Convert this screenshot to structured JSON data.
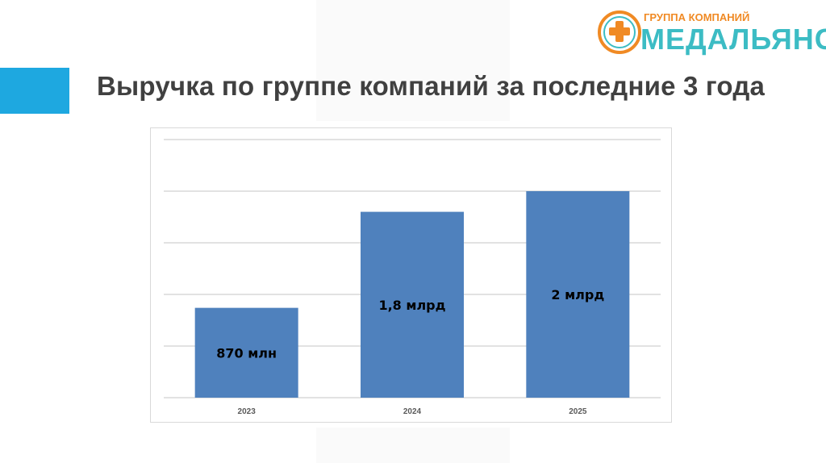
{
  "slide": {
    "title": "Выручка по группе компаний за последние 3 года",
    "accent_color": "#1ea8e0"
  },
  "logo": {
    "subtitle": "ГРУППА КОМПАНИЙ",
    "name": "МЕДАЛЬЯНС",
    "colors": {
      "orange": "#f08a24",
      "teal": "#3cbcc4"
    }
  },
  "chart_data": {
    "type": "bar",
    "categories": [
      "2023",
      "2024",
      "2025"
    ],
    "values": [
      870,
      1800,
      2000
    ],
    "data_labels": [
      "870 млн",
      "1,8 млрд",
      "2 млрд"
    ],
    "ylim": [
      0,
      2500
    ],
    "ytick_step": 500,
    "y_tick_labels_shown": false,
    "grid": true,
    "legend": "none",
    "bar_color": "#4f81bd",
    "title": "",
    "xlabel": "",
    "ylabel": ""
  }
}
